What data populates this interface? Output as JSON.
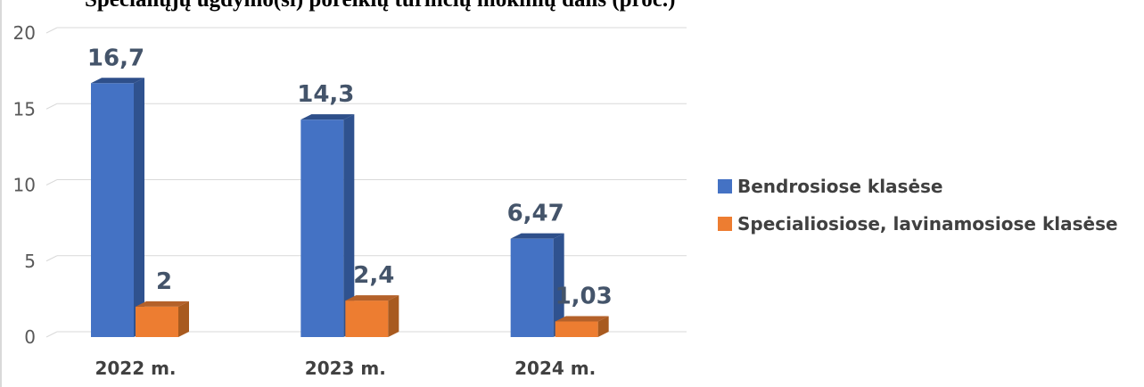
{
  "title": "Specialiųjų ugdymo(si) poreikių turinčių mokinių dalis (proc.)",
  "colors": {
    "series1": "#4472c4",
    "series2": "#ed7d31",
    "grid": "#d9d9d9"
  },
  "chart_data": {
    "type": "bar",
    "title": "Specialiųjų ugdymo(si) poreikių turinčių mokinių dalis (proc.)",
    "categories": [
      "2022 m.",
      "2023 m.",
      "2024 m."
    ],
    "series": [
      {
        "name": "Bendrosiose klasėse",
        "values": [
          16.7,
          14.3,
          6.47
        ],
        "labels": [
          "16,7",
          "14,3",
          "6,47"
        ]
      },
      {
        "name": "Specialiosiose, lavinamosiose klasėse",
        "values": [
          2,
          2.4,
          1.03
        ],
        "labels": [
          "2",
          "2,4",
          "1,03"
        ]
      }
    ],
    "yticks": [
      "0",
      "5",
      "10",
      "15",
      "20"
    ],
    "ylim": [
      0,
      20
    ],
    "grid": true,
    "legend": "right",
    "style": "3d-column"
  }
}
